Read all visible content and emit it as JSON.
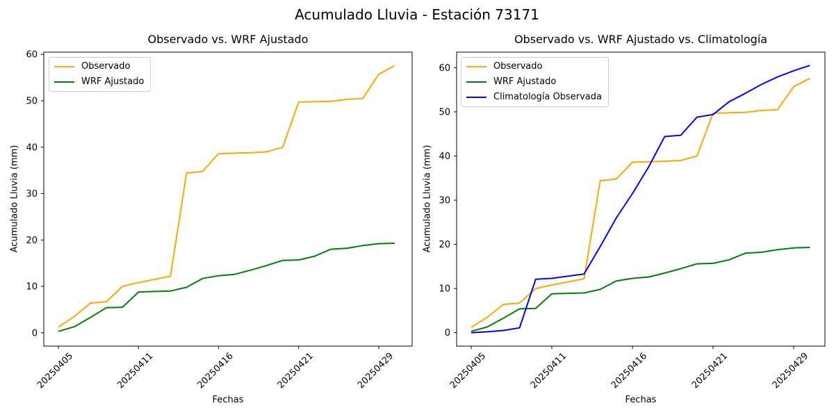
{
  "figure": {
    "title": "Acumulado Lluvia - Estación 73171"
  },
  "chart_data": [
    {
      "type": "line",
      "title": "Observado vs. WRF Ajustado",
      "xlabel": "Fechas",
      "ylabel": "Acumulado Lluvia (mm)",
      "x_tick_labels": [
        "20250405",
        "20250411",
        "20250416",
        "20250421",
        "20250429"
      ],
      "x_tick_positions": [
        0,
        5,
        10,
        15,
        20
      ],
      "y_ticks": [
        0,
        10,
        20,
        30,
        40,
        50,
        60
      ],
      "ylim": [
        -2.9,
        60.5
      ],
      "grid": false,
      "legend_position": "upper left",
      "series": [
        {
          "name": "Observado",
          "color": "#FFA500",
          "values": [
            1.2,
            3.5,
            6.4,
            6.7,
            10.0,
            10.8,
            11.5,
            12.2,
            34.4,
            34.8,
            38.6,
            38.7,
            38.8,
            39.0,
            40.0,
            49.7,
            49.8,
            49.9,
            50.3,
            50.5,
            55.7,
            57.6
          ]
        },
        {
          "name": "WRF Ajustado",
          "color": "#008000",
          "values": [
            0.3,
            1.3,
            3.3,
            5.4,
            5.5,
            8.8,
            8.9,
            9.0,
            9.8,
            11.7,
            12.3,
            12.6,
            13.5,
            14.5,
            15.6,
            15.7,
            16.5,
            18.0,
            18.2,
            18.8,
            19.2,
            19.3
          ]
        }
      ]
    },
    {
      "type": "line",
      "title": "Observado vs. WRF Ajustado vs. Climatología",
      "xlabel": "Fechas",
      "ylabel": "Acumulado Lluvia (mm)",
      "x_tick_labels": [
        "20250405",
        "20250411",
        "20250416",
        "20250421",
        "20250429"
      ],
      "x_tick_positions": [
        0,
        5,
        10,
        15,
        20
      ],
      "y_ticks": [
        0,
        10,
        20,
        30,
        40,
        50,
        60
      ],
      "ylim": [
        -3.0,
        63.5
      ],
      "grid": false,
      "legend_position": "upper left",
      "series": [
        {
          "name": "Observado",
          "color": "#FFA500",
          "values": [
            1.2,
            3.5,
            6.4,
            6.7,
            10.0,
            10.8,
            11.5,
            12.2,
            34.4,
            34.8,
            38.6,
            38.7,
            38.8,
            39.0,
            40.0,
            49.7,
            49.8,
            49.9,
            50.3,
            50.5,
            55.7,
            57.6
          ]
        },
        {
          "name": "WRF Ajustado",
          "color": "#008000",
          "values": [
            0.3,
            1.3,
            3.3,
            5.4,
            5.5,
            8.8,
            8.9,
            9.0,
            9.8,
            11.7,
            12.3,
            12.6,
            13.5,
            14.5,
            15.6,
            15.7,
            16.5,
            18.0,
            18.2,
            18.8,
            19.2,
            19.3
          ]
        },
        {
          "name": "Climatología Observada",
          "color": "#0000FF",
          "values": [
            0.0,
            0.2,
            0.5,
            1.1,
            12.1,
            12.3,
            12.8,
            13.3,
            19.5,
            26.0,
            31.5,
            37.5,
            44.4,
            44.7,
            48.8,
            49.4,
            52.3,
            54.2,
            56.2,
            57.9,
            59.3,
            60.5
          ]
        }
      ]
    }
  ]
}
